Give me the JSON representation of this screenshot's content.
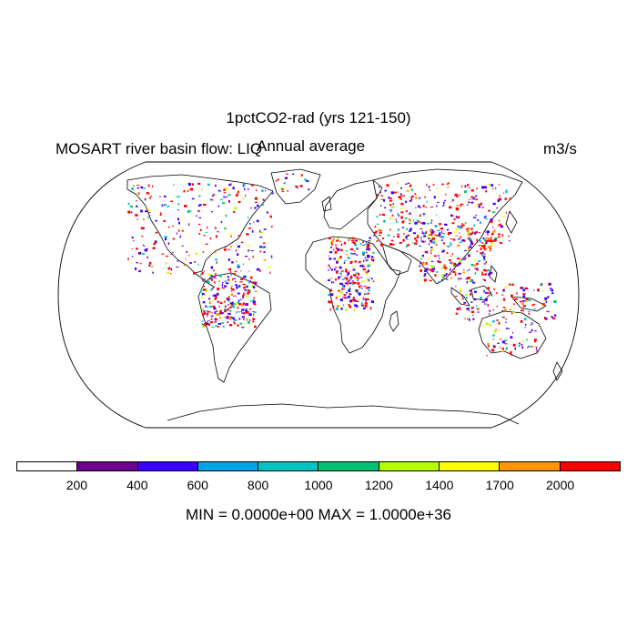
{
  "titles": {
    "main": "1pctCO2-rad (yrs 121-150)",
    "left": "MOSART river basin flow: LIQ",
    "center": "Annual average",
    "right": "m3/s"
  },
  "colorbar": {
    "colors": [
      "#ffffff",
      "#6e0091",
      "#3c00ff",
      "#00a5e6",
      "#00c3c3",
      "#00c373",
      "#b4ff00",
      "#ffff00",
      "#ff9600",
      "#ff0000"
    ],
    "labels": [
      "200",
      "400",
      "600",
      "800",
      "1000",
      "1200",
      "1400",
      "1700",
      "2000"
    ]
  },
  "stats": {
    "text": "MIN = 0.0000e+00 MAX = 1.0000e+36"
  }
}
